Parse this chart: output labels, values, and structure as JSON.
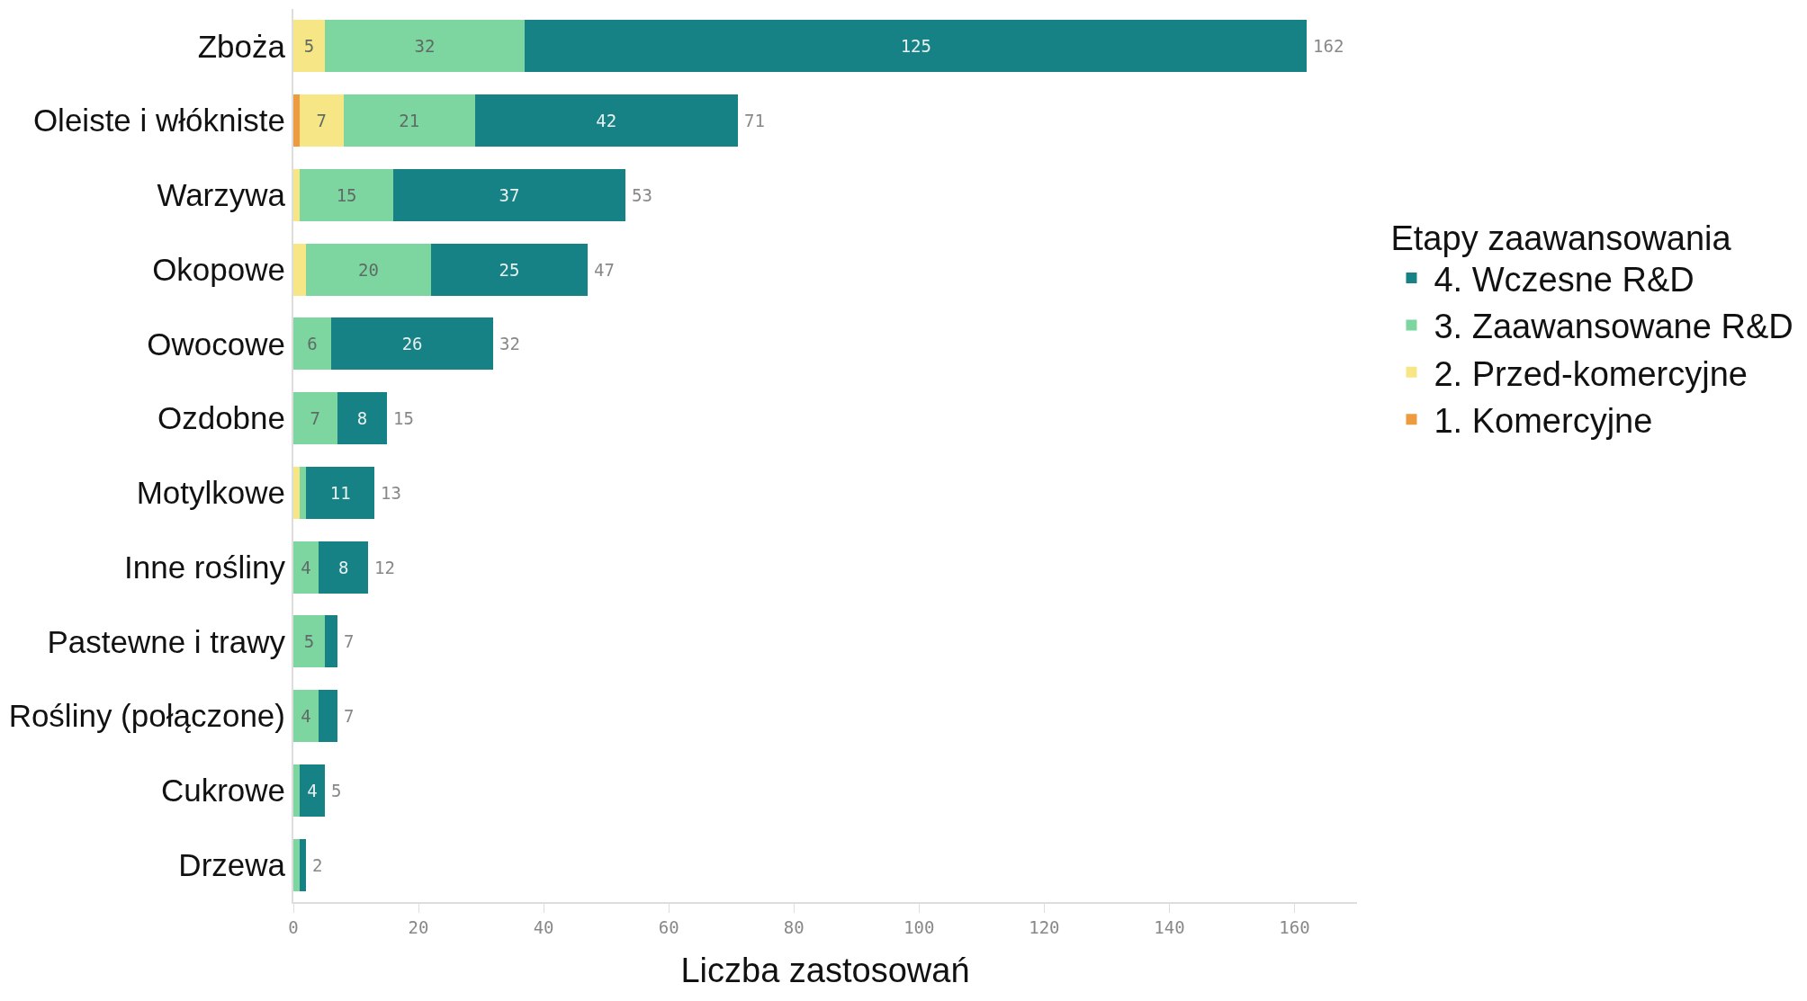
{
  "chart_data": {
    "type": "bar",
    "orientation": "horizontal",
    "stacked": true,
    "xlabel": "Liczba zastosowań",
    "legend_title": "Etapy zaawansowania",
    "legend": "right",
    "grid": false,
    "categories": [
      "Zboża",
      "Oleiste i włókniste",
      "Warzywa",
      "Okopowe",
      "Owocowe",
      "Ozdobne",
      "Motylkowe",
      "Inne rośliny",
      "Pastewne i trawy",
      "Rośliny (połączone)",
      "Cukrowe",
      "Drzewa"
    ],
    "series": [
      {
        "name": "1. Komercyjne",
        "color": "#ee9a3e",
        "values": [
          0,
          1,
          0,
          0,
          0,
          0,
          0,
          0,
          0,
          0,
          0,
          0
        ]
      },
      {
        "name": "2. Przed-komercyjne",
        "color": "#f7e685",
        "values": [
          5,
          7,
          1,
          2,
          0,
          0,
          1,
          0,
          0,
          0,
          0,
          0
        ],
        "value_labels": [
          "5",
          "7",
          null,
          null,
          null,
          null,
          null,
          null,
          null,
          null,
          null,
          null
        ]
      },
      {
        "name": "3. Zaawansowane R&D",
        "color": "#7dd6a0",
        "values": [
          32,
          21,
          15,
          20,
          6,
          7,
          1,
          4,
          5,
          4,
          1,
          1
        ],
        "value_labels": [
          "32",
          "21",
          "15",
          "20",
          "6",
          "7",
          null,
          "4",
          "5",
          "4",
          null,
          null
        ]
      },
      {
        "name": "4. Wczesne R&D",
        "color": "#178285",
        "values": [
          125,
          42,
          37,
          25,
          26,
          8,
          11,
          8,
          2,
          3,
          4,
          1
        ],
        "value_labels": [
          "125",
          "42",
          "37",
          "25",
          "26",
          "8",
          "11",
          "8",
          null,
          null,
          "4",
          null
        ]
      }
    ],
    "totals": [
      "162",
      "71",
      "53",
      "47",
      "32",
      "15",
      "13",
      "12",
      "7",
      "7",
      "5",
      "2"
    ],
    "xlim": [
      0,
      170
    ],
    "xticks": [
      0,
      20,
      40,
      60,
      80,
      100,
      120,
      140,
      160
    ]
  }
}
